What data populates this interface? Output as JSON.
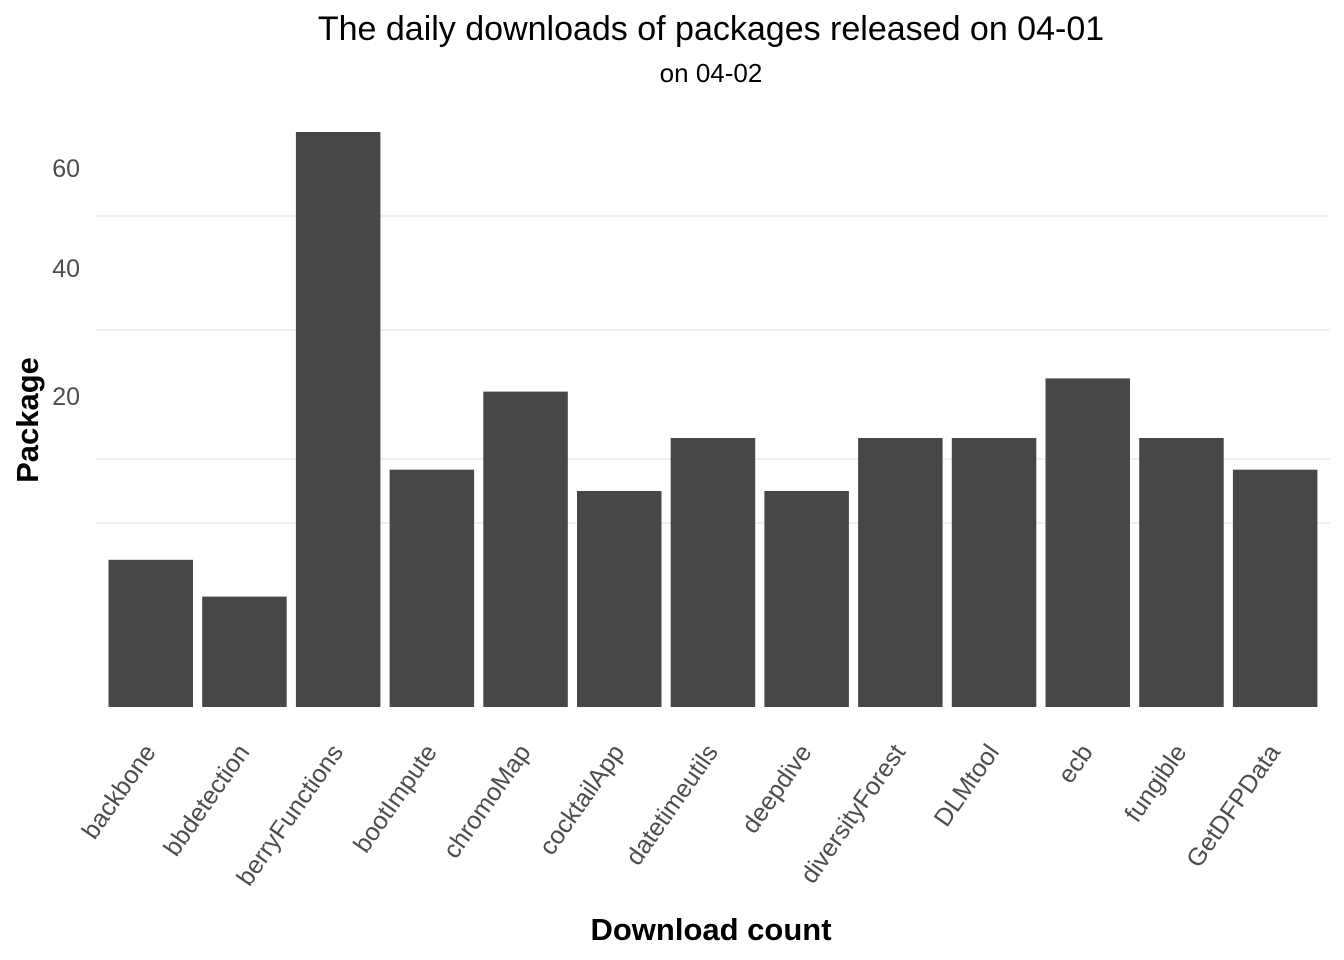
{
  "chart_data": {
    "type": "bar",
    "title": "The daily downloads of packages released on 04-01",
    "subtitle": "on 04-02",
    "xlabel": "Download count",
    "ylabel": "Package",
    "categories": [
      "backbone",
      "bbdetection",
      "berryFunctions",
      "bootImpute",
      "chromoMap",
      "cocktailApp",
      "datetimeutils",
      "deepdive",
      "diversityForest",
      "DLMtool",
      "ecb",
      "fungible",
      "GetDFPData"
    ],
    "values": [
      4,
      3,
      67,
      10,
      21,
      8,
      14,
      8,
      14,
      14,
      24,
      14,
      10
    ],
    "y_ticks": [
      {
        "label": "20",
        "value": 20
      },
      {
        "label": "40",
        "value": 40
      },
      {
        "label": "60",
        "value": 60
      }
    ],
    "y_gridlines": [
      5,
      11,
      35,
      50
    ],
    "bar_color": "#474747",
    "grid": true,
    "legend": "none"
  }
}
